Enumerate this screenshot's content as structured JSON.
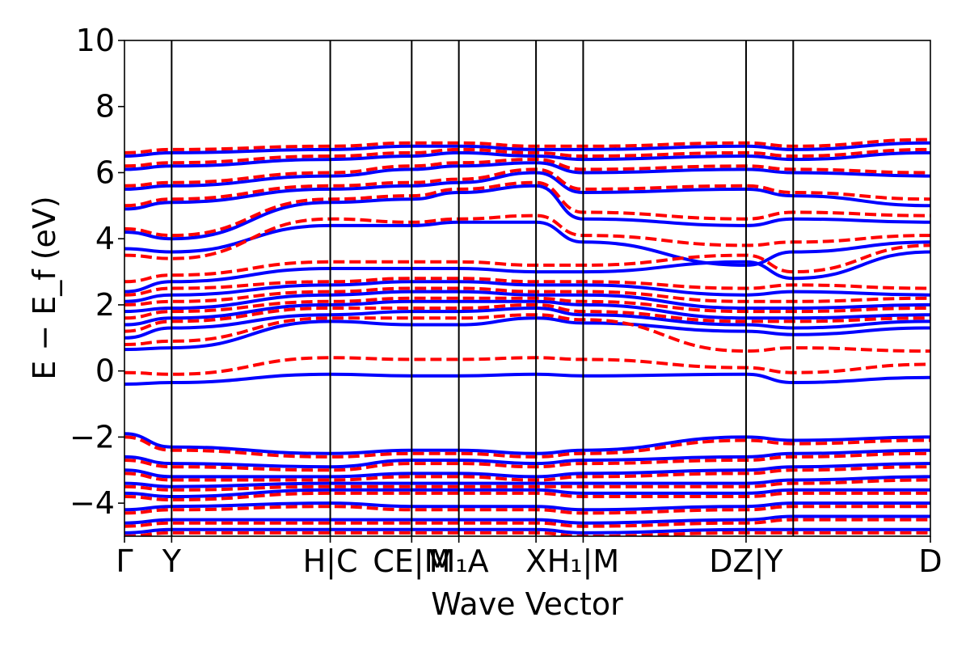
{
  "chart_data": {
    "type": "line",
    "title": "",
    "xlabel": "Wave Vector",
    "ylabel": "E − E_f (eV)",
    "ylim": [
      -5,
      10
    ],
    "yticks": [
      -4,
      -2,
      0,
      2,
      4,
      6,
      8,
      10
    ],
    "ytick_labels": [
      "−4",
      "−2",
      "0",
      "2",
      "4",
      "6",
      "8",
      "10"
    ],
    "grid": false,
    "legend": "none",
    "x_range": [
      0,
      18.8
    ],
    "kpoint_ticks": [
      {
        "label": "Γ",
        "x": 0
      },
      {
        "label": "Y",
        "x": 1.1
      },
      {
        "label": "H|C",
        "x": 4.8
      },
      {
        "label": "CE|M",
        "x": 6.7
      },
      {
        "label": "M₁A",
        "x": 7.8
      },
      {
        "label": "X",
        "x": 9.6
      },
      {
        "label": "H₁|M",
        "x": 10.7
      },
      {
        "label": "DZ|Y",
        "x": 14.5
      },
      {
        "label": "D",
        "x": 18.8
      }
    ],
    "vertical_lines_x": [
      1.1,
      4.8,
      6.7,
      7.8,
      9.6,
      10.7,
      14.5,
      15.6
    ],
    "series": [
      {
        "style": "solid",
        "color": "#0000ff",
        "bands_at_ticks": [
          [
            -0.4,
            -0.35,
            -0.1,
            -0.15,
            -0.15,
            -0.1,
            -0.15,
            -0.1,
            -0.35,
            -0.2
          ],
          [
            0.65,
            0.7,
            1.5,
            1.4,
            1.4,
            1.6,
            1.45,
            1.2,
            1.1,
            1.3
          ],
          [
            1.0,
            1.3,
            1.7,
            1.8,
            1.8,
            1.9,
            1.7,
            1.4,
            1.3,
            1.5
          ],
          [
            1.4,
            1.6,
            2.0,
            2.1,
            2.1,
            2.1,
            2.0,
            1.6,
            1.6,
            1.7
          ],
          [
            1.8,
            1.9,
            2.3,
            2.4,
            2.4,
            2.3,
            2.3,
            1.9,
            1.9,
            2.0
          ],
          [
            2.1,
            2.3,
            2.6,
            2.7,
            2.7,
            2.6,
            2.6,
            2.3,
            2.4,
            2.3
          ],
          [
            2.4,
            2.7,
            3.1,
            3.1,
            3.1,
            3.0,
            3.0,
            3.3,
            2.8,
            3.6
          ],
          [
            3.7,
            3.6,
            4.4,
            4.4,
            4.5,
            4.5,
            3.9,
            3.2,
            3.6,
            3.9
          ],
          [
            4.2,
            4.0,
            5.1,
            5.2,
            5.4,
            5.6,
            4.6,
            4.4,
            4.6,
            4.5
          ],
          [
            4.9,
            5.1,
            5.5,
            5.6,
            5.7,
            6.0,
            5.4,
            5.5,
            5.3,
            5.0
          ],
          [
            5.5,
            5.6,
            5.9,
            6.1,
            6.2,
            6.3,
            6.0,
            6.1,
            6.0,
            5.9
          ],
          [
            6.1,
            6.2,
            6.4,
            6.5,
            6.6,
            6.5,
            6.4,
            6.5,
            6.4,
            6.6
          ],
          [
            6.5,
            6.6,
            6.7,
            6.8,
            6.8,
            6.7,
            6.7,
            6.8,
            6.7,
            6.9
          ],
          [
            -1.9,
            -2.3,
            -2.5,
            -2.4,
            -2.4,
            -2.5,
            -2.4,
            -2.0,
            -2.1,
            -2.0
          ],
          [
            -2.6,
            -2.8,
            -2.9,
            -2.7,
            -2.7,
            -2.8,
            -2.7,
            -2.6,
            -2.5,
            -2.4
          ],
          [
            -3.0,
            -3.2,
            -3.2,
            -3.1,
            -3.1,
            -3.2,
            -3.1,
            -3.0,
            -2.9,
            -2.8
          ],
          [
            -3.4,
            -3.5,
            -3.4,
            -3.4,
            -3.4,
            -3.4,
            -3.4,
            -3.4,
            -3.3,
            -3.2
          ],
          [
            -3.7,
            -3.8,
            -3.6,
            -3.6,
            -3.6,
            -3.6,
            -3.7,
            -3.7,
            -3.6,
            -3.6
          ],
          [
            -4.2,
            -4.1,
            -4.0,
            -4.1,
            -4.1,
            -4.1,
            -4.2,
            -4.1,
            -4.0,
            -4.0
          ],
          [
            -4.6,
            -4.5,
            -4.5,
            -4.5,
            -4.5,
            -4.5,
            -4.6,
            -4.5,
            -4.4,
            -4.4
          ],
          [
            -4.9,
            -4.8,
            -4.8,
            -4.8,
            -4.8,
            -4.8,
            -4.9,
            -4.8,
            -4.8,
            -4.8
          ]
        ]
      },
      {
        "style": "dashed",
        "color": "#ff0000",
        "bands_at_ticks": [
          [
            -0.05,
            -0.1,
            0.4,
            0.35,
            0.35,
            0.4,
            0.35,
            0.1,
            -0.05,
            0.2
          ],
          [
            0.8,
            0.9,
            1.6,
            1.6,
            1.6,
            1.7,
            1.55,
            0.6,
            0.7,
            0.6
          ],
          [
            1.2,
            1.5,
            1.9,
            1.9,
            1.9,
            2.0,
            1.8,
            1.5,
            1.5,
            1.6
          ],
          [
            1.6,
            1.8,
            2.1,
            2.2,
            2.2,
            2.2,
            2.1,
            1.8,
            1.8,
            1.9
          ],
          [
            2.0,
            2.1,
            2.4,
            2.5,
            2.5,
            2.4,
            2.4,
            2.1,
            2.1,
            2.2
          ],
          [
            2.3,
            2.5,
            2.7,
            2.8,
            2.8,
            2.7,
            2.7,
            2.5,
            2.6,
            2.5
          ],
          [
            2.7,
            2.9,
            3.3,
            3.3,
            3.3,
            3.2,
            3.2,
            3.5,
            3.0,
            3.8
          ],
          [
            3.5,
            3.4,
            4.6,
            4.5,
            4.6,
            4.7,
            4.1,
            3.8,
            3.9,
            4.1
          ],
          [
            4.3,
            4.1,
            5.2,
            5.3,
            5.5,
            5.7,
            4.8,
            4.6,
            4.8,
            4.7
          ],
          [
            5.0,
            5.2,
            5.6,
            5.7,
            5.8,
            6.1,
            5.5,
            5.6,
            5.4,
            5.2
          ],
          [
            5.6,
            5.7,
            6.0,
            6.2,
            6.3,
            6.4,
            6.1,
            6.2,
            6.1,
            6.0
          ],
          [
            6.2,
            6.3,
            6.5,
            6.6,
            6.7,
            6.6,
            6.5,
            6.6,
            6.5,
            6.7
          ],
          [
            6.6,
            6.7,
            6.8,
            6.9,
            6.9,
            6.8,
            6.8,
            6.9,
            6.8,
            7.0
          ],
          [
            -2.0,
            -2.4,
            -2.6,
            -2.5,
            -2.5,
            -2.6,
            -2.5,
            -2.1,
            -2.2,
            -2.1
          ],
          [
            -2.7,
            -2.9,
            -3.0,
            -2.8,
            -2.8,
            -2.9,
            -2.8,
            -2.7,
            -2.6,
            -2.5
          ],
          [
            -3.1,
            -3.3,
            -3.3,
            -3.2,
            -3.2,
            -3.3,
            -3.2,
            -3.1,
            -3.0,
            -2.9
          ],
          [
            -3.5,
            -3.6,
            -3.5,
            -3.5,
            -3.5,
            -3.5,
            -3.5,
            -3.5,
            -3.4,
            -3.3
          ],
          [
            -3.8,
            -3.9,
            -3.7,
            -3.7,
            -3.7,
            -3.7,
            -3.8,
            -3.8,
            -3.7,
            -3.7
          ],
          [
            -4.3,
            -4.2,
            -4.1,
            -4.2,
            -4.2,
            -4.2,
            -4.3,
            -4.2,
            -4.1,
            -4.1
          ],
          [
            -4.7,
            -4.6,
            -4.6,
            -4.6,
            -4.6,
            -4.6,
            -4.7,
            -4.6,
            -4.5,
            -4.5
          ],
          [
            -5.0,
            -4.9,
            -4.9,
            -4.9,
            -4.9,
            -4.9,
            -5.0,
            -4.9,
            -4.9,
            -4.9
          ]
        ]
      }
    ],
    "band_tick_x": [
      0,
      1.1,
      4.8,
      6.7,
      7.8,
      9.6,
      10.7,
      14.5,
      15.6,
      18.8
    ]
  }
}
